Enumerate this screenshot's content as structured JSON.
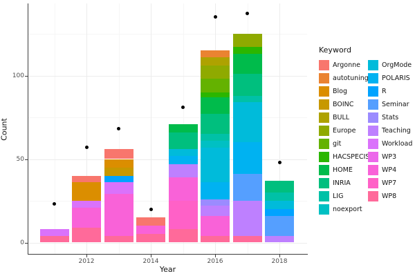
{
  "chart_data": {
    "type": "bar",
    "subtype": "stacked-bar-with-points",
    "title": "",
    "xlabel": "Year",
    "ylabel": "Count",
    "legend_title": "Keyword",
    "legend_position": "right",
    "grid": true,
    "x_tick_labels": [
      "2012",
      "2014",
      "2016",
      "2018"
    ],
    "x_tick_years": [
      2012,
      2014,
      2016,
      2018
    ],
    "x_minor_years": [
      2011,
      2013,
      2015,
      2017
    ],
    "y_tick_values": [
      0,
      50,
      100
    ],
    "y_minor_values": [
      25,
      75,
      125
    ],
    "ylim": [
      0,
      143
    ],
    "years": [
      2011,
      2012,
      2013,
      2014,
      2015,
      2016,
      2017,
      2018
    ],
    "palette": {
      "Argonne": "#F8766D",
      "autotuning": "#EA8331",
      "Blog": "#DB8E00",
      "BOINC": "#C79800",
      "BULL": "#AEA200",
      "Europe": "#8FAA00",
      "git": "#64B200",
      "HACSPECIS": "#2BB600",
      "HOME": "#00BB4B",
      "INRIA": "#00BF7E",
      "LIG": "#00C1A7",
      "noexport": "#00C0C3",
      "OrgMode": "#00BBDA",
      "POLARIS": "#00B2F1",
      "R": "#00A3FF",
      "Seminar": "#559FFF",
      "Stats": "#9B8BFF",
      "Teaching": "#BE80FF",
      "Workload": "#DA72FB",
      "WP3": "#EC69EA",
      "WP4": "#F962D8",
      "WP7": "#FF61C7",
      "WP8": "#FF6A9A"
    },
    "legend_columns": [
      [
        "Argonne",
        "autotuning",
        "Blog",
        "BOINC",
        "BULL",
        "Europe",
        "git",
        "HACSPECIS",
        "HOME",
        "INRIA",
        "LIG",
        "noexport"
      ],
      [
        "OrgMode",
        "POLARIS",
        "R",
        "Seminar",
        "Stats",
        "Teaching",
        "Workload",
        "WP3",
        "WP4",
        "WP7",
        "WP8"
      ]
    ],
    "bars": [
      {
        "year": 2011,
        "total": 8,
        "segments_top_to_bottom": [
          {
            "keyword": "Workload",
            "value": 4
          },
          {
            "keyword": "WP8",
            "value": 4
          }
        ]
      },
      {
        "year": 2012,
        "total": 40,
        "segments_top_to_bottom": [
          {
            "keyword": "Argonne",
            "value": 4
          },
          {
            "keyword": "Blog",
            "value": 11
          },
          {
            "keyword": "Workload",
            "value": 4
          },
          {
            "keyword": "WP4",
            "value": 12
          },
          {
            "keyword": "WP8",
            "value": 9
          }
        ]
      },
      {
        "year": 2013,
        "total": 56,
        "segments_top_to_bottom": [
          {
            "keyword": "Argonne",
            "value": 6
          },
          {
            "keyword": "Blog",
            "value": 5
          },
          {
            "keyword": "BOINC",
            "value": 5
          },
          {
            "keyword": "R",
            "value": 4
          },
          {
            "keyword": "Workload",
            "value": 7
          },
          {
            "keyword": "WP4",
            "value": 25
          },
          {
            "keyword": "WP8",
            "value": 4
          }
        ]
      },
      {
        "year": 2014,
        "total": 15,
        "segments_top_to_bottom": [
          {
            "keyword": "Argonne",
            "value": 5
          },
          {
            "keyword": "WP4",
            "value": 5
          },
          {
            "keyword": "WP8",
            "value": 5
          }
        ]
      },
      {
        "year": 2015,
        "total": 71,
        "segments_top_to_bottom": [
          {
            "keyword": "HOME",
            "value": 5
          },
          {
            "keyword": "INRIA",
            "value": 10
          },
          {
            "keyword": "OrgMode",
            "value": 4
          },
          {
            "keyword": "POLARIS",
            "value": 5
          },
          {
            "keyword": "Teaching",
            "value": 8
          },
          {
            "keyword": "WP4",
            "value": 14
          },
          {
            "keyword": "WP7",
            "value": 17
          },
          {
            "keyword": "WP8",
            "value": 8
          }
        ]
      },
      {
        "year": 2016,
        "total": 115,
        "segments_top_to_bottom": [
          {
            "keyword": "autotuning",
            "value": 4
          },
          {
            "keyword": "BULL",
            "value": 5
          },
          {
            "keyword": "Europe",
            "value": 8
          },
          {
            "keyword": "git",
            "value": 8
          },
          {
            "keyword": "HACSPECIS",
            "value": 3
          },
          {
            "keyword": "HOME",
            "value": 10
          },
          {
            "keyword": "INRIA",
            "value": 12
          },
          {
            "keyword": "LIG",
            "value": 4
          },
          {
            "keyword": "noexport",
            "value": 4
          },
          {
            "keyword": "OrgMode",
            "value": 21
          },
          {
            "keyword": "POLARIS",
            "value": 10
          },
          {
            "keyword": "Stats",
            "value": 4
          },
          {
            "keyword": "Teaching",
            "value": 6
          },
          {
            "keyword": "WP4",
            "value": 12
          },
          {
            "keyword": "WP8",
            "value": 4
          }
        ]
      },
      {
        "year": 2017,
        "total": 125,
        "segments_top_to_bottom": [
          {
            "keyword": "Europe",
            "value": 8
          },
          {
            "keyword": "HACSPECIS",
            "value": 4
          },
          {
            "keyword": "HOME",
            "value": 12
          },
          {
            "keyword": "INRIA",
            "value": 13
          },
          {
            "keyword": "LIG",
            "value": 4
          },
          {
            "keyword": "OrgMode",
            "value": 24
          },
          {
            "keyword": "POLARIS",
            "value": 19
          },
          {
            "keyword": "Seminar",
            "value": 16
          },
          {
            "keyword": "Teaching",
            "value": 21
          },
          {
            "keyword": "WP8",
            "value": 4
          }
        ]
      },
      {
        "year": 2018,
        "total": 37,
        "segments_top_to_bottom": [
          {
            "keyword": "INRIA",
            "value": 7
          },
          {
            "keyword": "LIG",
            "value": 5
          },
          {
            "keyword": "OrgMode",
            "value": 5
          },
          {
            "keyword": "R",
            "value": 4
          },
          {
            "keyword": "Seminar",
            "value": 12
          },
          {
            "keyword": "Teaching",
            "value": 4
          }
        ]
      },
      {
        "year": 2011,
        "note": "",
        "hidden": true
      }
    ],
    "points": [
      {
        "year": 2011,
        "value": 23
      },
      {
        "year": 2012,
        "value": 57
      },
      {
        "year": 2013,
        "value": 68
      },
      {
        "year": 2014,
        "value": 20
      },
      {
        "year": 2015,
        "value": 81
      },
      {
        "year": 2016,
        "value": 135
      },
      {
        "year": 2017,
        "value": 137
      },
      {
        "year": 2018,
        "value": 48
      }
    ]
  }
}
